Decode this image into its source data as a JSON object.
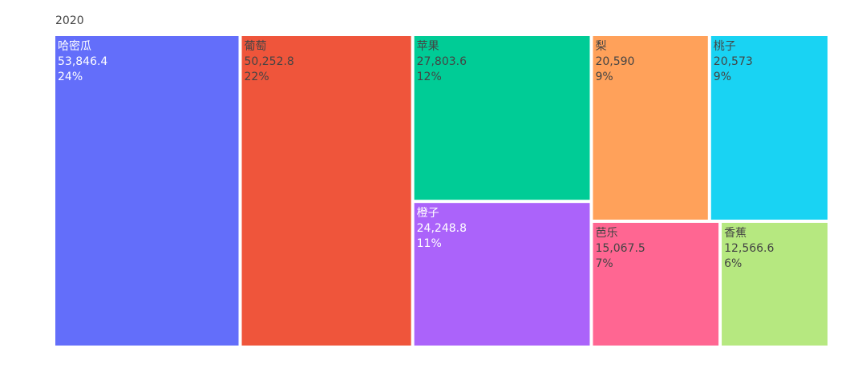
{
  "chart_data": {
    "type": "treemap",
    "root": "2020",
    "items": [
      {
        "label": "哈密瓜",
        "value": 53846.4,
        "value_text": "53,846.4",
        "percent_text": "24%",
        "color": "#636efa",
        "text_color": "#ffffff"
      },
      {
        "label": "葡萄",
        "value": 50252.8,
        "value_text": "50,252.8",
        "percent_text": "22%",
        "color": "#ef553b",
        "text_color": "#444444"
      },
      {
        "label": "苹果",
        "value": 27803.6,
        "value_text": "27,803.6",
        "percent_text": "12%",
        "color": "#00cc96",
        "text_color": "#444444"
      },
      {
        "label": "橙子",
        "value": 24248.8,
        "value_text": "24,248.8",
        "percent_text": "11%",
        "color": "#ab63fa",
        "text_color": "#ffffff"
      },
      {
        "label": "梨",
        "value": 20590,
        "value_text": "20,590",
        "percent_text": "9%",
        "color": "#ffa15a",
        "text_color": "#444444"
      },
      {
        "label": "桃子",
        "value": 20573,
        "value_text": "20,573",
        "percent_text": "9%",
        "color": "#19d3f3",
        "text_color": "#444444"
      },
      {
        "label": "芭乐",
        "value": 15067.5,
        "value_text": "15,067.5",
        "percent_text": "7%",
        "color": "#ff6692",
        "text_color": "#444444"
      },
      {
        "label": "香蕉",
        "value": 12566.6,
        "value_text": "12,566.6",
        "percent_text": "6%",
        "color": "#b6e880",
        "text_color": "#444444"
      }
    ]
  }
}
